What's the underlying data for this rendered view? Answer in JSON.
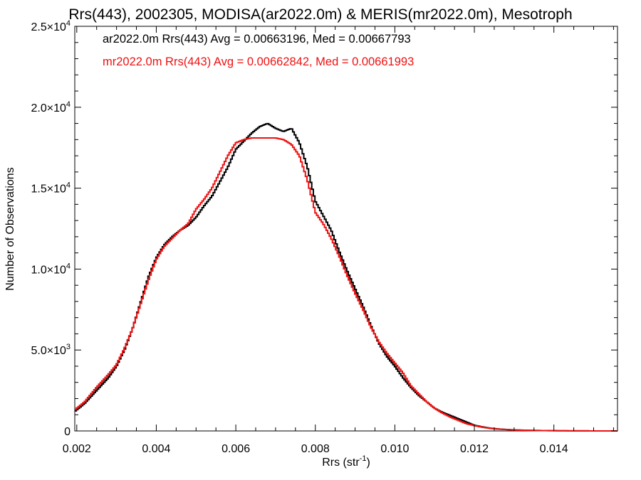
{
  "chart_data": {
    "type": "line",
    "title": "Rrs(443), 2002305, MODISA(ar2022.0m) & MERIS(mr2022.0m), Mesotroph",
    "xlabel": "Rrs (str",
    "xlabel_sup": "-1",
    "xlabel_close": ")",
    "ylabel": "Number of Observations",
    "xlim": [
      0.00195,
      0.0156
    ],
    "ylim": [
      0,
      25000
    ],
    "grid": false,
    "x_ticks": [
      {
        "v": 0.002,
        "label": "0.002"
      },
      {
        "v": 0.004,
        "label": "0.004"
      },
      {
        "v": 0.006,
        "label": "0.006"
      },
      {
        "v": 0.008,
        "label": "0.008"
      },
      {
        "v": 0.01,
        "label": "0.010"
      },
      {
        "v": 0.012,
        "label": "0.012"
      },
      {
        "v": 0.014,
        "label": "0.014"
      }
    ],
    "y_ticks": [
      {
        "v": 0,
        "mant": "0",
        "exp": ""
      },
      {
        "v": 5000,
        "mant": "5.0×10",
        "exp": "3"
      },
      {
        "v": 10000,
        "mant": "1.0×10",
        "exp": "4"
      },
      {
        "v": 15000,
        "mant": "1.5×10",
        "exp": "4"
      },
      {
        "v": 20000,
        "mant": "2.0×10",
        "exp": "4"
      },
      {
        "v": 25000,
        "mant": "2.5×10",
        "exp": "4"
      }
    ],
    "annotations": [
      {
        "text": "ar2022.0m Rrs(443) Avg = 0.00663196, Med = 0.00667793",
        "color": "#000000"
      },
      {
        "text": "mr2022.0m Rrs(443) Avg = 0.00662842, Med = 0.00661993",
        "color": "#ee1111"
      }
    ],
    "series": [
      {
        "color": "#000000",
        "x": [
          0.00195,
          0.0022,
          0.0025,
          0.0028,
          0.003,
          0.0032,
          0.0034,
          0.0036,
          0.0038,
          0.004,
          0.0042,
          0.0044,
          0.0046,
          0.0048,
          0.005,
          0.0052,
          0.0054,
          0.0056,
          0.0058,
          0.006,
          0.0062,
          0.0064,
          0.0066,
          0.0068,
          0.007,
          0.0072,
          0.0074,
          0.0076,
          0.0078,
          0.008,
          0.0082,
          0.0084,
          0.0086,
          0.0088,
          0.009,
          0.0092,
          0.0094,
          0.0096,
          0.0098,
          0.01,
          0.0102,
          0.0104,
          0.0106,
          0.0108,
          0.011,
          0.0112,
          0.0114,
          0.0116,
          0.0118,
          0.012,
          0.0122,
          0.0124,
          0.0126,
          0.013,
          0.0135,
          0.014,
          0.0145,
          0.015,
          0.0156
        ],
        "y": [
          1200,
          1700,
          2500,
          3300,
          4000,
          5000,
          6300,
          7900,
          9500,
          10700,
          11500,
          12000,
          12400,
          12700,
          13200,
          13900,
          14500,
          15400,
          16300,
          17400,
          17900,
          18400,
          18800,
          19000,
          18700,
          18500,
          18700,
          17800,
          16300,
          14200,
          13300,
          12400,
          11100,
          9900,
          8800,
          7700,
          6500,
          5400,
          4600,
          4000,
          3300,
          2700,
          2200,
          1800,
          1400,
          1150,
          950,
          750,
          550,
          350,
          250,
          170,
          120,
          60,
          30,
          15,
          5,
          2,
          0
        ]
      },
      {
        "color": "#ee1111",
        "x": [
          0.00195,
          0.0022,
          0.0025,
          0.0028,
          0.003,
          0.0032,
          0.0034,
          0.0036,
          0.0038,
          0.004,
          0.0042,
          0.0044,
          0.0046,
          0.0048,
          0.005,
          0.0052,
          0.0054,
          0.0056,
          0.0058,
          0.006,
          0.0062,
          0.0064,
          0.0066,
          0.0068,
          0.007,
          0.0072,
          0.0074,
          0.0076,
          0.0078,
          0.008,
          0.0082,
          0.0084,
          0.0086,
          0.0088,
          0.009,
          0.0092,
          0.0094,
          0.0096,
          0.0098,
          0.01,
          0.0102,
          0.0104,
          0.0106,
          0.0108,
          0.011,
          0.0112,
          0.0114,
          0.0116,
          0.0118,
          0.012,
          0.0122,
          0.0124,
          0.0126,
          0.013,
          0.0135,
          0.014,
          0.0145,
          0.015,
          0.0156
        ],
        "y": [
          1300,
          1800,
          2700,
          3500,
          4100,
          5100,
          6300,
          7800,
          9300,
          10600,
          11400,
          11900,
          12400,
          12800,
          13700,
          14300,
          15000,
          16000,
          17000,
          17800,
          18000,
          18100,
          18100,
          18100,
          18100,
          18000,
          17700,
          17000,
          15500,
          13500,
          12800,
          11900,
          10800,
          9600,
          8500,
          7500,
          6400,
          5500,
          4800,
          4200,
          3600,
          2800,
          2300,
          1800,
          1400,
          1100,
          850,
          650,
          450,
          330,
          230,
          160,
          110,
          55,
          28,
          14,
          5,
          2,
          0
        ]
      }
    ]
  }
}
